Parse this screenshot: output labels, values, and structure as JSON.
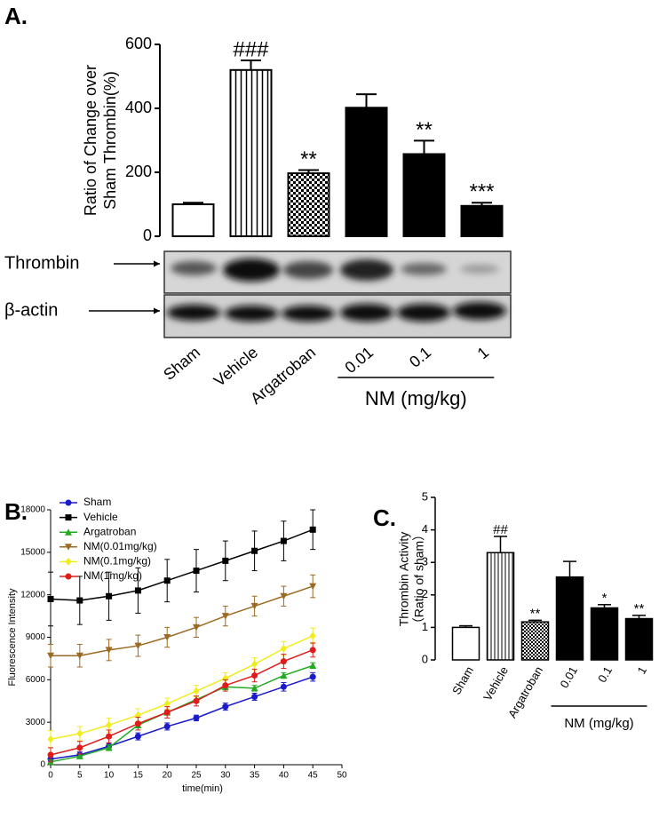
{
  "chart_data": [
    {
      "type": "bar",
      "title": "A.",
      "ylabel": [
        "Ratio of Change over",
        "Sham Thrombin(%)"
      ],
      "categories": [
        "Sham",
        "Vehicle",
        "Argatroban",
        "0.01",
        "0.1",
        "1"
      ],
      "values": [
        100,
        520,
        197,
        402,
        257,
        95
      ],
      "errors": [
        5,
        30,
        10,
        42,
        42,
        10
      ],
      "annotations": [
        null,
        "###",
        "**",
        null,
        "**",
        "***"
      ],
      "patterns": [
        "white",
        "vertical-stripes",
        "checker",
        "solid",
        "solid",
        "solid"
      ],
      "color": "#000000",
      "ylim": [
        0,
        600
      ],
      "yticks": [
        0,
        200,
        400,
        600
      ],
      "group_label": "NM (mg/kg)",
      "blot_labels": [
        "Thrombin",
        "β-actin"
      ]
    },
    {
      "type": "line",
      "title": "B.",
      "xlabel": "time(min)",
      "ylabel": "Fluorescence Intensity",
      "x": [
        0,
        5,
        10,
        15,
        20,
        25,
        30,
        35,
        40,
        45
      ],
      "xlim": [
        0,
        50
      ],
      "xticks": [
        0,
        5,
        10,
        15,
        20,
        25,
        30,
        35,
        40,
        45,
        50
      ],
      "ylim": [
        0,
        18000
      ],
      "yticks": [
        0,
        3000,
        6000,
        9000,
        12000,
        15000,
        18000
      ],
      "legend": "top-left",
      "series": [
        {
          "name": "Sham",
          "color": "#1a1acc",
          "marker": "circle",
          "values": [
            400,
            700,
            1300,
            2000,
            2700,
            3300,
            4100,
            4800,
            5500,
            6200
          ],
          "errors": [
            200,
            200,
            200,
            250,
            250,
            200,
            250,
            250,
            300,
            300
          ]
        },
        {
          "name": "Vehicle",
          "color": "#000000",
          "marker": "square",
          "values": [
            11700,
            11600,
            11900,
            12300,
            13000,
            13700,
            14400,
            15100,
            15800,
            16600
          ],
          "errors": [
            1900,
            1700,
            1700,
            1600,
            1500,
            1500,
            1400,
            1400,
            1400,
            1400
          ]
        },
        {
          "name": "Argatroban",
          "color": "#22aa22",
          "marker": "triangle-up",
          "values": [
            200,
            600,
            1200,
            2800,
            3700,
            4600,
            5500,
            5400,
            6300,
            7000
          ],
          "errors": [
            150,
            150,
            200,
            200,
            200,
            200,
            200,
            200,
            200,
            200
          ]
        },
        {
          "name": "NM(0.01mg/kg)",
          "color": "#9c6a22",
          "marker": "triangle-down",
          "values": [
            7700,
            7700,
            8100,
            8400,
            9000,
            9700,
            10500,
            11200,
            11900,
            12600
          ],
          "errors": [
            800,
            800,
            750,
            750,
            700,
            700,
            700,
            700,
            700,
            800
          ]
        },
        {
          "name": "NM(0.1mg/kg)",
          "color": "#f0ec1e",
          "marker": "diamond",
          "values": [
            1800,
            2200,
            2800,
            3500,
            4300,
            5200,
            6100,
            7100,
            8200,
            9100
          ],
          "errors": [
            600,
            500,
            500,
            450,
            400,
            400,
            400,
            450,
            500,
            550
          ]
        },
        {
          "name": "NM(1mg/kg)",
          "color": "#e01b1b",
          "marker": "circle",
          "values": [
            700,
            1200,
            2000,
            2900,
            3700,
            4500,
            5600,
            6300,
            7300,
            8100
          ],
          "errors": [
            500,
            450,
            450,
            450,
            400,
            350,
            400,
            450,
            500,
            500
          ]
        }
      ]
    },
    {
      "type": "bar",
      "title": "C.",
      "ylabel": [
        "Thrombin Activity",
        "（Ratio of  sham）"
      ],
      "categories": [
        "Sham",
        "Vehicle",
        "Argatroban",
        "0.01",
        "0.1",
        "1"
      ],
      "values": [
        1.0,
        3.3,
        1.17,
        2.55,
        1.6,
        1.27
      ],
      "errors": [
        0.05,
        0.5,
        0.05,
        0.48,
        0.1,
        0.1
      ],
      "annotations": [
        null,
        "##",
        "**",
        null,
        "*",
        "**"
      ],
      "patterns": [
        "white",
        "vertical-stripes",
        "checker",
        "solid",
        "solid",
        "solid"
      ],
      "color": "#000000",
      "ylim": [
        0,
        5
      ],
      "yticks": [
        0,
        1,
        2,
        3,
        4,
        5
      ],
      "group_label": "NM (mg/kg)"
    }
  ]
}
